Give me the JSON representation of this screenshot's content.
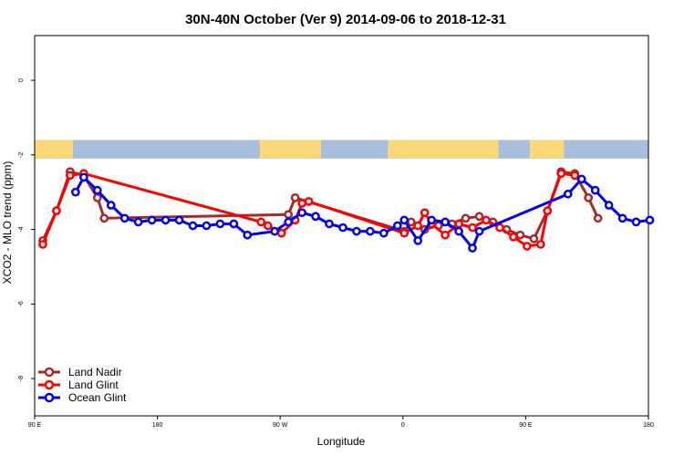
{
  "chart_data": {
    "type": "line",
    "title": "30N-40N October (Ver 9)   2014-09-06 to 2018-12-31",
    "xlabel": "Longitude",
    "ylabel": "XCO2 - MLO trend (ppm)",
    "xlim": [
      90,
      540
    ],
    "ylim": [
      -9,
      1.2
    ],
    "x_ticks": [
      {
        "value": 90,
        "label": "90 E"
      },
      {
        "value": 180,
        "label": "180"
      },
      {
        "value": 270,
        "label": "90 W"
      },
      {
        "value": 360,
        "label": "0"
      },
      {
        "value": 450,
        "label": "90 E"
      },
      {
        "value": 540,
        "label": "180"
      }
    ],
    "y_ticks": [
      {
        "value": 0,
        "label": "0"
      },
      {
        "value": -2,
        "label": "-2"
      },
      {
        "value": -4,
        "label": "-4"
      },
      {
        "value": -6,
        "label": "-6"
      },
      {
        "value": -8,
        "label": "-8"
      }
    ],
    "map_strip": {
      "ymin": -2.1,
      "ymax": -1.6,
      "ocean_color": "#a7bedd",
      "land_color": "#fbd97a"
    },
    "legend_position": "bottom-left",
    "series": [
      {
        "name": "Land Nadir",
        "color": "#a52a2a",
        "points": [
          [
            96,
            -4.3
          ],
          [
            106,
            -3.5
          ],
          [
            116,
            -2.45
          ],
          [
            126,
            -2.55
          ],
          [
            136,
            -3.15
          ],
          [
            141,
            -3.7
          ],
          [
            276,
            -3.6
          ],
          [
            281,
            -3.15
          ],
          [
            361,
            -4.05
          ],
          [
            366,
            -3.8
          ],
          [
            376,
            -4.0
          ],
          [
            386,
            -3.9
          ],
          [
            396,
            -3.85
          ],
          [
            406,
            -3.7
          ],
          [
            416,
            -3.65
          ],
          [
            426,
            -3.8
          ],
          [
            436,
            -4.0
          ],
          [
            446,
            -4.15
          ],
          [
            456,
            -4.25
          ],
          [
            466,
            -3.5
          ],
          [
            476,
            -2.45
          ],
          [
            486,
            -2.5
          ],
          [
            496,
            -3.15
          ],
          [
            496,
            -3.15
          ],
          [
            503,
            -3.7
          ]
        ]
      },
      {
        "name": "Land Glint",
        "color": "#ff0000",
        "points": [
          [
            96,
            -4.4
          ],
          [
            106,
            -3.5
          ],
          [
            116,
            -2.55
          ],
          [
            126,
            -2.5
          ],
          [
            256,
            -3.8
          ],
          [
            261,
            -3.9
          ],
          [
            271,
            -4.1
          ],
          [
            281,
            -3.75
          ],
          [
            286,
            -3.3
          ],
          [
            291,
            -3.25
          ],
          [
            361,
            -4.1
          ],
          [
            371,
            -3.9
          ],
          [
            376,
            -3.55
          ],
          [
            381,
            -3.85
          ],
          [
            391,
            -4.15
          ],
          [
            401,
            -3.85
          ],
          [
            411,
            -3.95
          ],
          [
            421,
            -3.75
          ],
          [
            431,
            -3.95
          ],
          [
            441,
            -4.2
          ],
          [
            451,
            -4.45
          ],
          [
            461,
            -4.4
          ],
          [
            466,
            -3.5
          ],
          [
            476,
            -2.5
          ],
          [
            486,
            -2.55
          ]
        ]
      },
      {
        "name": "Ocean Glint",
        "color": "#0000ee",
        "points": [
          [
            120,
            -3.0
          ],
          [
            126,
            -2.6
          ],
          [
            136,
            -2.95
          ],
          [
            146,
            -3.35
          ],
          [
            156,
            -3.7
          ],
          [
            166,
            -3.8
          ],
          [
            176,
            -3.75
          ],
          [
            186,
            -3.75
          ],
          [
            196,
            -3.75
          ],
          [
            206,
            -3.9
          ],
          [
            216,
            -3.9
          ],
          [
            226,
            -3.85
          ],
          [
            236,
            -3.85
          ],
          [
            246,
            -4.15
          ],
          [
            266,
            -4.05
          ],
          [
            276,
            -3.8
          ],
          [
            286,
            -3.55
          ],
          [
            296,
            -3.65
          ],
          [
            306,
            -3.85
          ],
          [
            316,
            -3.95
          ],
          [
            326,
            -4.05
          ],
          [
            336,
            -4.05
          ],
          [
            346,
            -4.1
          ],
          [
            356,
            -3.9
          ],
          [
            361,
            -3.75
          ],
          [
            371,
            -4.3
          ],
          [
            381,
            -3.75
          ],
          [
            391,
            -3.8
          ],
          [
            401,
            -4.05
          ],
          [
            411,
            -4.5
          ],
          [
            416,
            -4.05
          ],
          [
            481,
            -3.05
          ],
          [
            491,
            -2.65
          ],
          [
            501,
            -2.95
          ],
          [
            511,
            -3.35
          ],
          [
            521,
            -3.7
          ],
          [
            531,
            -3.8
          ],
          [
            541,
            -3.75
          ]
        ]
      }
    ]
  }
}
